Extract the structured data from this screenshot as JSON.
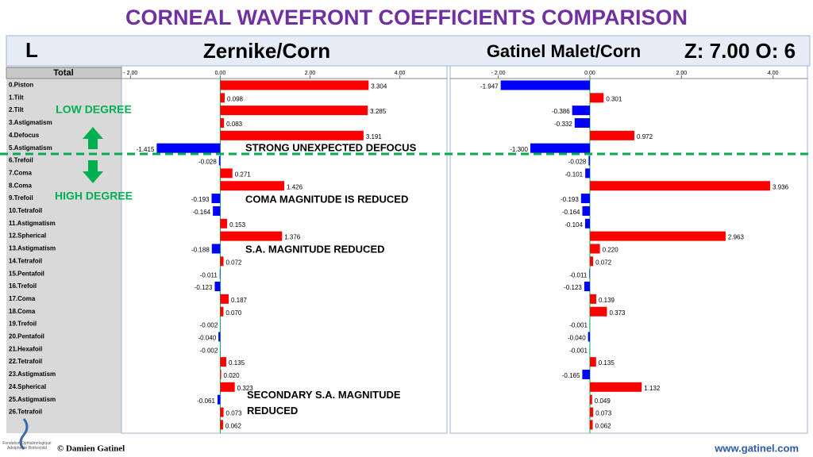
{
  "title": "CORNEAL WAVEFRONT COEFFICIENTS COMPARISON",
  "header": {
    "eye": "L",
    "left_title": "Zernike/Corn",
    "right_title": "Gatinel Malet/Corn",
    "settings": "Z: 7.00 O: 6",
    "column_title": "Total"
  },
  "annotations": [
    "LOW DEGREE",
    "HIGH DEGREE",
    "STRONG UNEXPECTED DEFOCUS",
    "COMA MAGNITUDE IS REDUCED",
    "S.A. MAGNITUDE REDUCED",
    "SECONDARY S.A. MAGNITUDE REDUCED"
  ],
  "footer": {
    "logo": "Fondation Ophtalmologique Adolphe de Rothschild",
    "author": "© Damien Gatinel",
    "website": "www.gatinel.com"
  },
  "chart_data": [
    {
      "type": "hbar",
      "colors": {
        "positive": "#ff0000",
        "negative": "#0000ff"
      },
      "categories": [
        "0.Piston",
        "1.Tilt",
        "2.Tilt",
        "3.Astigmatism",
        "4.Defocus",
        "5.Astigmatism",
        "6.Trefoil",
        "7.Coma",
        "8.Coma",
        "9.Trefoil",
        "10.Tetrafoil",
        "11.Astigmatism",
        "12.Spherical",
        "13.Astigmatism",
        "14.Tetrafoil",
        "15.Pentafoil",
        "16.Trefoil",
        "17.Coma",
        "18.Coma",
        "19.Trefoil",
        "20.Pentafoil",
        "21.Hexafoil",
        "22.Tetrafoil",
        "23.Astigmatism",
        "24.Spherical",
        "25.Astigmatism",
        "26.Tetrafoil",
        null
      ],
      "values": [
        3.304,
        0.098,
        3.285,
        0.083,
        3.191,
        -1.415,
        -0.028,
        0.271,
        1.426,
        -0.193,
        -0.164,
        0.153,
        1.376,
        -0.188,
        0.072,
        -0.011,
        -0.123,
        0.187,
        0.07,
        -0.002,
        -0.04,
        -0.002,
        0.135,
        0.02,
        0.323,
        -0.061,
        0.073,
        0.062
      ],
      "value_labels": [
        "3.304",
        "0.098",
        "3.285",
        "0.083",
        "3.191",
        "-1.415",
        "-0.028",
        "0.271",
        "1.426",
        "-0.193",
        "-0.164",
        "0.153",
        "1.376",
        "-0.188",
        "0.072",
        "-0.011",
        "-0.123",
        "0.187",
        "0.070",
        "-0.002",
        "-0.040",
        "-0.002",
        "0.135",
        "0.020",
        "0.323",
        "-0.061",
        "0.073",
        "0.062"
      ],
      "xlim": [
        -2.2,
        5.05
      ],
      "xticks": [
        {
          "value": -2,
          "label": "- 2.00"
        },
        {
          "value": 0,
          "label": "0.00"
        },
        {
          "value": 2,
          "label": "2.00"
        },
        {
          "value": 4,
          "label": "4.00"
        }
      ]
    },
    {
      "type": "hbar",
      "colors": {
        "positive": "#ff0000",
        "negative": "#0000ff"
      },
      "values": [
        -1.947,
        0.301,
        -0.386,
        -0.332,
        0.972,
        -1.3,
        -0.028,
        -0.101,
        3.936,
        -0.193,
        -0.164,
        -0.104,
        2.963,
        0.22,
        0.072,
        -0.011,
        -0.123,
        0.139,
        0.373,
        -0.001,
        -0.04,
        -0.001,
        0.135,
        -0.165,
        1.132,
        0.049,
        0.073,
        0.062
      ],
      "value_labels": [
        "-1.947",
        "0.301",
        "-0.386",
        "-0.332",
        "0.972",
        "-1.300",
        "-0.028",
        "-0.101",
        "3.936",
        "-0.193",
        "-0.164",
        "-0.104",
        "2.963",
        "0.220",
        "0.072",
        "-0.011",
        "-0.123",
        "0.139",
        "0.373",
        "-0.001",
        "-0.040",
        "-0.001",
        "0.135",
        "-0.165",
        "1.132",
        "0.049",
        "0.073",
        "0.062"
      ],
      "xlim": [
        -3.05,
        4.75
      ],
      "xticks": [
        {
          "value": -2,
          "label": "- 2.00"
        },
        {
          "value": 0,
          "label": "0.00"
        },
        {
          "value": 2,
          "label": "2.00"
        },
        {
          "value": 4,
          "label": "4.00"
        }
      ]
    }
  ]
}
